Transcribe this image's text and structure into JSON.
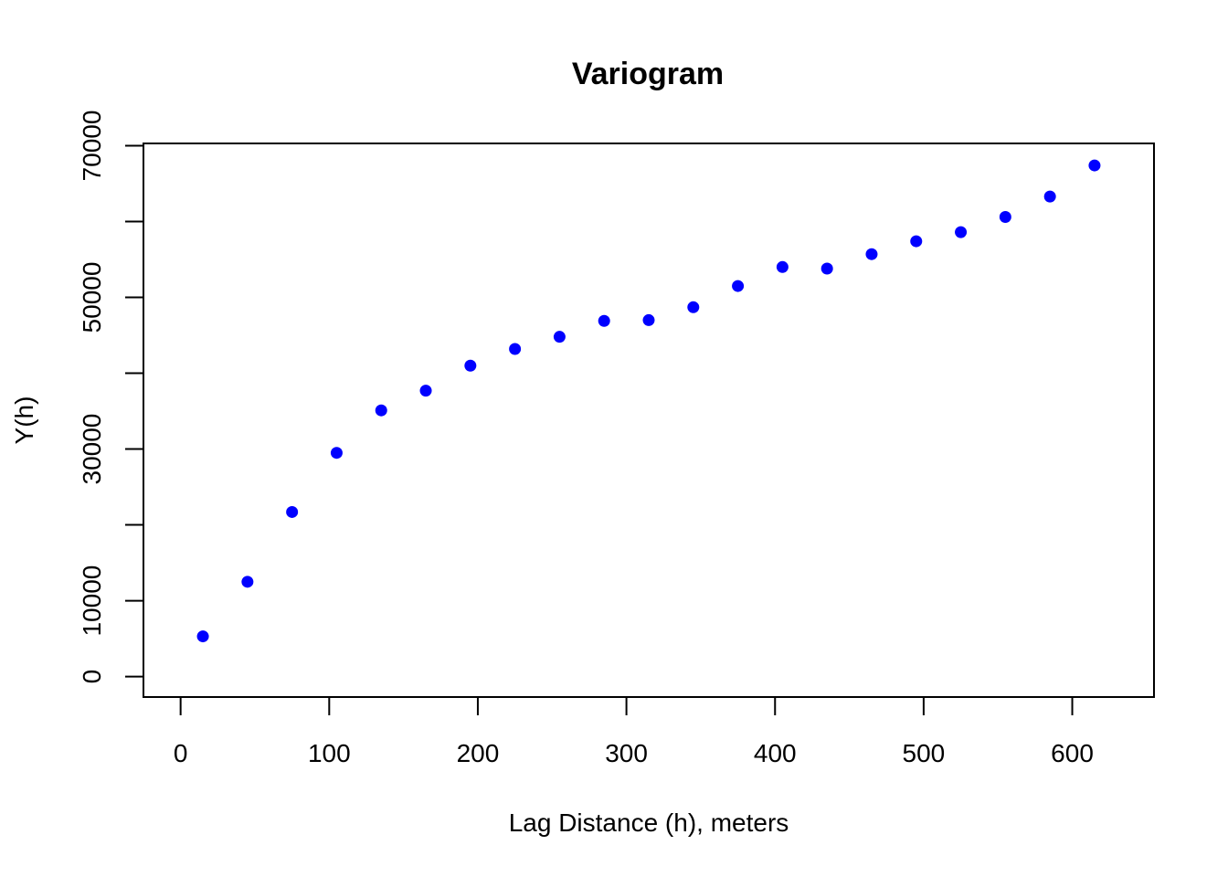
{
  "chart_data": {
    "type": "scatter",
    "title": "Variogram",
    "xlabel": "Lag Distance (h), meters",
    "ylabel": "Y(h)",
    "xlim": [
      -25,
      655
    ],
    "ylim": [
      -2700,
      70300
    ],
    "x_ticks": [
      0,
      100,
      200,
      300,
      400,
      500,
      600
    ],
    "y_ticks": [
      0,
      10000,
      20000,
      30000,
      40000,
      50000,
      60000,
      70000
    ],
    "y_tick_labels": [
      "0",
      "10000",
      "",
      "30000",
      "",
      "50000",
      "",
      "70000"
    ],
    "grid": false,
    "legend": "none",
    "point_color": "#0000ff",
    "series": [
      {
        "x": [
          15,
          45,
          75,
          105,
          135,
          165,
          195,
          225,
          255,
          285,
          315,
          345,
          375,
          405,
          435,
          465,
          495,
          525,
          555,
          585,
          615
        ],
        "y": [
          5300,
          12500,
          21700,
          29500,
          35100,
          37700,
          41000,
          43200,
          44800,
          46900,
          47000,
          48700,
          51500,
          54000,
          53800,
          55700,
          57400,
          58600,
          60600,
          63300,
          67400
        ]
      }
    ]
  }
}
